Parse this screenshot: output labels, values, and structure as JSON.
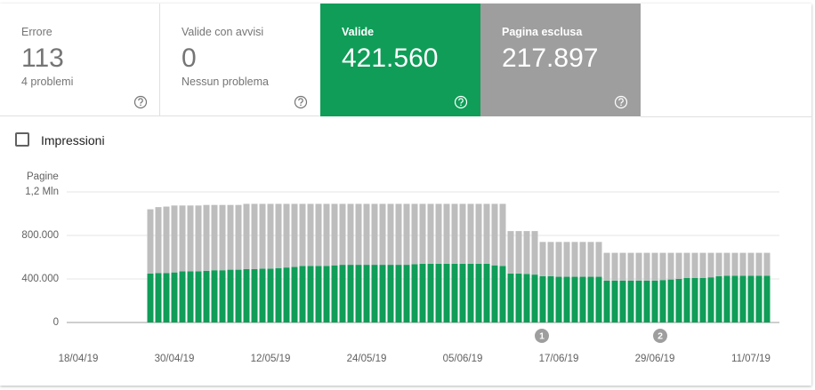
{
  "tiles": [
    {
      "label": "Errore",
      "value": "113",
      "sub": "4 problemi"
    },
    {
      "label": "Valide con avvisi",
      "value": "0",
      "sub": "Nessun problema"
    },
    {
      "label": "Valide",
      "value": "421.560"
    },
    {
      "label": "Pagina esclusa",
      "value": "217.897"
    }
  ],
  "checkbox": "Impressioni",
  "chart_data": {
    "type": "bar",
    "stacked": true,
    "y_label": "Pagine",
    "categories": [
      "18/04/19",
      null,
      null,
      null,
      null,
      null,
      null,
      null,
      null,
      null,
      null,
      null,
      "30/04/19",
      null,
      null,
      null,
      null,
      null,
      null,
      null,
      null,
      null,
      null,
      null,
      "12/05/19",
      null,
      null,
      null,
      null,
      null,
      null,
      null,
      null,
      null,
      null,
      null,
      "24/05/19",
      null,
      null,
      null,
      null,
      null,
      null,
      null,
      null,
      null,
      null,
      null,
      "05/06/19",
      null,
      null,
      null,
      null,
      null,
      null,
      null,
      null,
      null,
      null,
      null,
      "17/06/19",
      null,
      null,
      null,
      null,
      null,
      null,
      null,
      null,
      null,
      null,
      null,
      "29/06/19",
      null,
      null,
      null,
      null,
      null,
      null,
      null,
      null,
      null,
      null,
      null,
      "11/07/19",
      null,
      null
    ],
    "series": [
      {
        "color": "#0f9d58",
        "values": [
          null,
          null,
          null,
          null,
          null,
          null,
          null,
          null,
          null,
          450000,
          455000,
          455000,
          460000,
          470000,
          470000,
          470000,
          475000,
          480000,
          480000,
          485000,
          485000,
          490000,
          490000,
          495000,
          495000,
          500000,
          505000,
          510000,
          520000,
          520000,
          520000,
          520000,
          525000,
          530000,
          530000,
          530000,
          530000,
          530000,
          530000,
          530000,
          530000,
          530000,
          535000,
          540000,
          540000,
          540000,
          540000,
          540000,
          540000,
          540000,
          540000,
          540000,
          525000,
          520000,
          450000,
          450000,
          445000,
          440000,
          425000,
          425000,
          420000,
          420000,
          420000,
          420000,
          420000,
          420000,
          385000,
          385000,
          385000,
          385000,
          385000,
          385000,
          385000,
          390000,
          395000,
          400000,
          410000,
          410000,
          410000,
          415000,
          425000,
          430000,
          430000,
          430000,
          430000,
          430000,
          430000
        ]
      },
      {
        "color": "#bdbdbd",
        "values": [
          null,
          null,
          null,
          null,
          null,
          null,
          null,
          null,
          null,
          590000,
          605000,
          610000,
          615000,
          605000,
          605000,
          605000,
          605000,
          600000,
          600000,
          595000,
          595000,
          600000,
          600000,
          595000,
          595000,
          590000,
          585000,
          580000,
          570000,
          570000,
          570000,
          570000,
          565000,
          560000,
          560000,
          560000,
          560000,
          560000,
          560000,
          560000,
          560000,
          560000,
          555000,
          550000,
          550000,
          550000,
          550000,
          550000,
          550000,
          550000,
          550000,
          550000,
          565000,
          570000,
          390000,
          390000,
          395000,
          400000,
          315000,
          315000,
          320000,
          320000,
          320000,
          320000,
          320000,
          320000,
          255000,
          255000,
          255000,
          255000,
          255000,
          255000,
          255000,
          250000,
          245000,
          240000,
          230000,
          230000,
          230000,
          225000,
          215000,
          210000,
          210000,
          210000,
          210000,
          210000,
          210000
        ]
      }
    ],
    "ylim": [
      0,
      1200000
    ],
    "yticks": [
      0,
      {
        "value": 400000,
        "label": "400.000"
      },
      {
        "value": 800000,
        "label": "800.000"
      },
      {
        "value": 1200000,
        "label": "1,2 Mln"
      }
    ],
    "grid": true,
    "annotations": [
      {
        "label": "1"
      },
      {
        "label": "2"
      }
    ]
  }
}
